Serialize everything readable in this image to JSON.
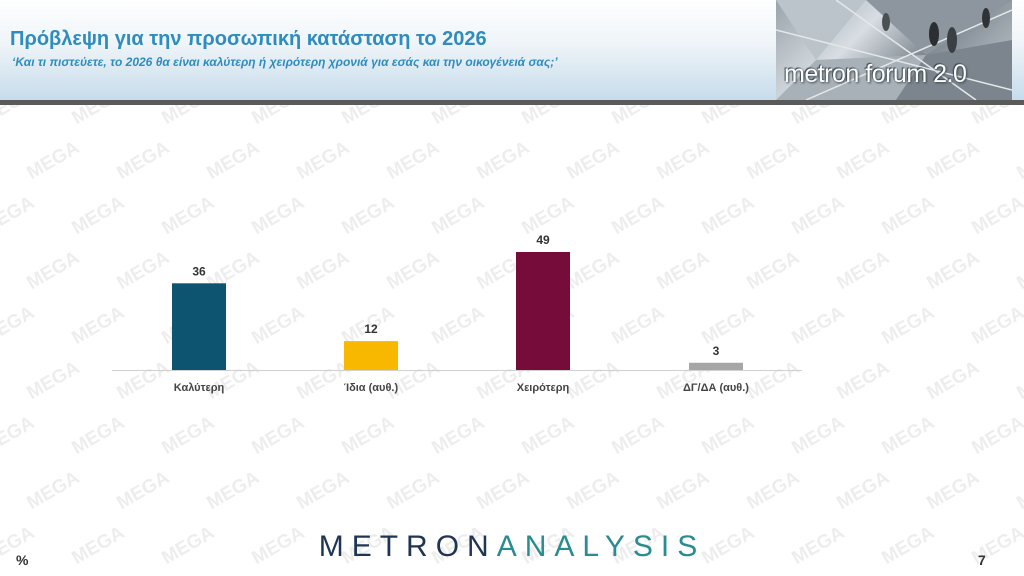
{
  "header": {
    "title": "Πρόβλεψη για την προσωπική κατάσταση το 2026",
    "subtitle": "‘Και τι πιστεύετε, το 2026 θα είναι καλύτερη ή χειρότερη χρονιά για εσάς και την οικογένειά σας;’"
  },
  "logo": {
    "text": "metron forum 2.0"
  },
  "watermark": {
    "text": "MEGA"
  },
  "chart_data": {
    "type": "bar",
    "categories": [
      "Καλύτερη",
      "Ίδια (αυθ.)",
      "Χειρότερη",
      "ΔΓ/ΔΑ (αυθ.)"
    ],
    "values": [
      36,
      12,
      49,
      3
    ],
    "colors": [
      "#0c5470",
      "#f9b800",
      "#760c3a",
      "#a6a6a6"
    ],
    "ylim": [
      0,
      49
    ],
    "grid": false,
    "legend": "none"
  },
  "footer": {
    "brand_part1": "METRON",
    "brand_part2": "ANALYSIS",
    "unit": "%",
    "page_number": "7"
  }
}
